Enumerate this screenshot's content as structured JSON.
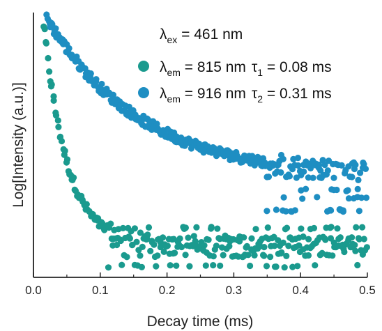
{
  "chart_data": {
    "type": "scatter",
    "title": "",
    "xlabel": "Decay time (ms)",
    "ylabel": "Log[Intensity (a.u.)]",
    "xlim": [
      0.0,
      0.5
    ],
    "ylim_note": "log scale, no tick labels",
    "x_ticks": [
      "0.0",
      "0.1",
      "0.2",
      "0.3",
      "0.4",
      "0.5"
    ],
    "annotation": {
      "prefix": "λ",
      "sub": "ex",
      "text": " = 461 nm"
    },
    "colors": {
      "series1": "#1a9a8e",
      "series2": "#1e8ec2",
      "axis": "#222222"
    },
    "series": [
      {
        "name": "λem = 815 nm τ1 = 0.08 ms",
        "label": {
          "lambda_sub": "em",
          "lambda_value": " = 815 nm",
          "tau_sub": "1",
          "tau_value": " = 0.08 ms"
        },
        "tau_ms": 0.08,
        "amplitude_norm": [
          0.96,
          0.08
        ],
        "noise_floor_levels": [
          0.15,
          0.11,
          0.08,
          0.04,
          0.0
        ],
        "x_range": [
          0.015,
          0.5
        ]
      },
      {
        "name": "λem = 916 nm τ2 = 0.31 ms",
        "label": {
          "lambda_sub": "em",
          "lambda_value": " = 916 nm",
          "tau_sub": "2",
          "tau_value": " = 0.31 ms"
        },
        "tau_ms": 0.31,
        "amplitude_norm": [
          0.98,
          0.35
        ],
        "noise_floor_levels": [
          0.4,
          0.35,
          0.3,
          0.27,
          0.22
        ],
        "x_range": [
          0.02,
          0.5
        ]
      }
    ]
  }
}
